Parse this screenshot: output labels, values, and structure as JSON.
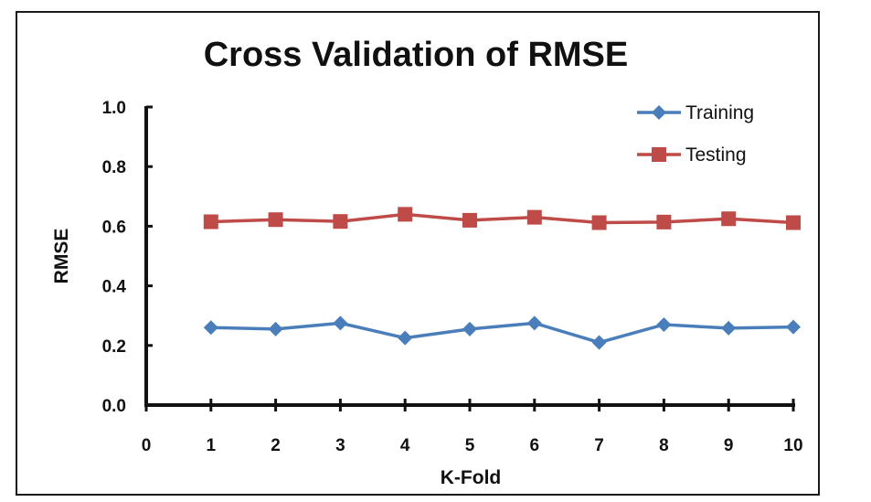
{
  "chart_data": {
    "type": "line",
    "title": "Cross Validation of RMSE",
    "xlabel": "K-Fold",
    "ylabel": "RMSE",
    "x": [
      1,
      2,
      3,
      4,
      5,
      6,
      7,
      8,
      9,
      10
    ],
    "xlim": [
      0,
      10
    ],
    "x_ticks": [
      "0",
      "1",
      "2",
      "3",
      "4",
      "5",
      "6",
      "7",
      "8",
      "9",
      "10"
    ],
    "ylim": [
      0,
      1.0
    ],
    "y_ticks": [
      "0.0",
      "0.2",
      "0.4",
      "0.6",
      "0.8",
      "1.0"
    ],
    "grid": false,
    "legend_position": "top-right",
    "series": [
      {
        "name": "Training",
        "color": "#4a7ebb",
        "marker": "diamond",
        "values": [
          0.26,
          0.255,
          0.275,
          0.225,
          0.255,
          0.275,
          0.21,
          0.27,
          0.258,
          0.262
        ]
      },
      {
        "name": "Testing",
        "color": "#be4b48",
        "marker": "square",
        "values": [
          0.615,
          0.622,
          0.616,
          0.64,
          0.62,
          0.63,
          0.612,
          0.614,
          0.625,
          0.612
        ]
      }
    ]
  }
}
